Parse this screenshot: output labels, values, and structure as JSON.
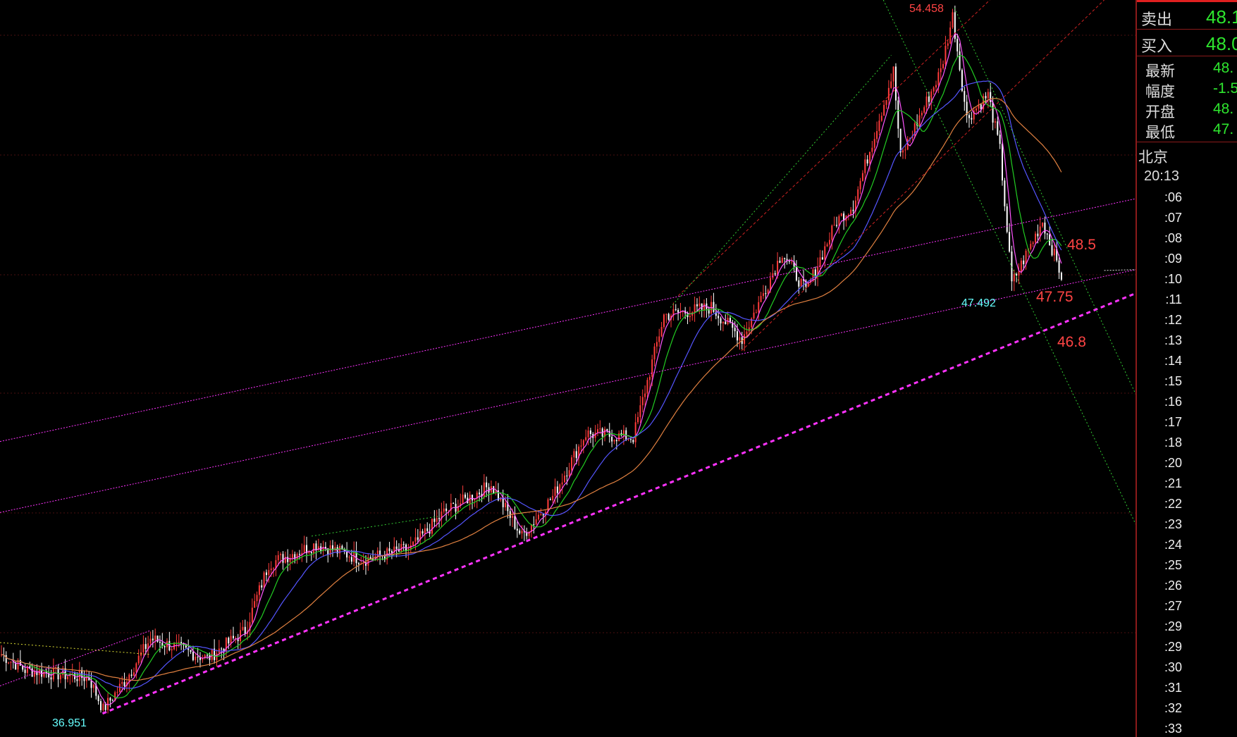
{
  "chart_data": {
    "type": "candlestick",
    "grid": true,
    "overlays": [
      "moving averages",
      "trend lines"
    ],
    "colors": {
      "up": "#ff3b3b",
      "down": "#ffffff",
      "ma1": "#ff55ff",
      "ma2": "#22cc22",
      "ma3": "#5555ff",
      "ma4": "#e08040",
      "trend_magenta": "#ff33ff",
      "trend_red": "#cc2222",
      "trend_green": "#33cc33"
    },
    "path": [
      [
        0,
        38.35
      ],
      [
        10,
        37.96
      ],
      [
        37,
        37.76
      ],
      [
        43,
        36.96
      ],
      [
        53,
        37.76
      ],
      [
        63,
        38.75
      ],
      [
        87,
        38.25
      ],
      [
        103,
        38.95
      ],
      [
        113,
        40.64
      ],
      [
        133,
        41.13
      ],
      [
        153,
        40.74
      ],
      [
        173,
        41.03
      ],
      [
        187,
        41.93
      ],
      [
        207,
        42.63
      ],
      [
        220,
        41.33
      ],
      [
        233,
        42.33
      ],
      [
        247,
        43.92
      ],
      [
        267,
        43.82
      ],
      [
        280,
        46.9
      ],
      [
        300,
        47.1
      ],
      [
        313,
        46.3
      ],
      [
        330,
        48.49
      ],
      [
        340,
        47.5
      ],
      [
        353,
        49.28
      ],
      [
        360,
        49.68
      ],
      [
        377,
        53.06
      ],
      [
        380,
        50.87
      ],
      [
        397,
        53.06
      ],
      [
        402,
        54.45
      ],
      [
        408,
        51.87
      ],
      [
        417,
        52.46
      ],
      [
        422,
        51.07
      ],
      [
        427,
        47.69
      ],
      [
        440,
        49.28
      ],
      [
        448,
        47.89
      ]
    ],
    "annotations": {
      "high": "54.458",
      "low_left": "36.951",
      "low_right": "47.492",
      "level1": "48.5",
      "level2": "47.75",
      "level3": "46.8"
    }
  },
  "panel": {
    "sell": {
      "label": "卖出",
      "value": "48.1"
    },
    "buy": {
      "label": "买入",
      "value": "48.0"
    },
    "info": [
      {
        "label": "最新",
        "value": "48."
      },
      {
        "label": "幅度",
        "value": "-1.5"
      },
      {
        "label": "开盘",
        "value": "48."
      },
      {
        "label": "最低",
        "value": "47."
      }
    ],
    "location": "北京",
    "time": "20:13",
    "ticks": [
      ":06",
      ":07",
      ":08",
      ":09",
      ":10",
      ":11",
      ":12",
      ":13",
      ":14",
      ":15",
      ":16",
      ":17",
      ":18",
      ":20",
      ":21",
      ":22",
      ":23",
      ":24",
      ":25",
      ":26",
      ":27",
      ":29",
      ":29",
      ":30",
      ":31",
      ":32",
      ":33"
    ]
  }
}
